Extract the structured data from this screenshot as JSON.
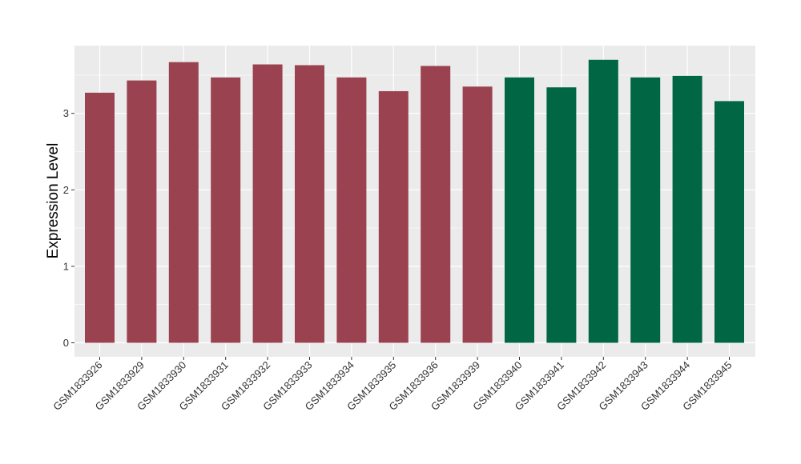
{
  "chart_data": {
    "type": "bar",
    "title": "",
    "xlabel": "",
    "ylabel": "Expression Level",
    "ylim": [
      0,
      3.9
    ],
    "yticks": [
      0,
      1,
      2,
      3
    ],
    "grid": true,
    "legend": "none",
    "categories": [
      "GSM1833926",
      "GSM1833929",
      "GSM1833930",
      "GSM1833931",
      "GSM1833932",
      "GSM1833933",
      "GSM1833934",
      "GSM1833935",
      "GSM1833936",
      "GSM1833939",
      "GSM1833940",
      "GSM1833941",
      "GSM1833942",
      "GSM1833943",
      "GSM1833944",
      "GSM1833945"
    ],
    "values": [
      3.27,
      3.43,
      3.67,
      3.47,
      3.64,
      3.63,
      3.47,
      3.29,
      3.62,
      3.35,
      3.47,
      3.34,
      3.7,
      3.47,
      3.49,
      3.16
    ],
    "groups": [
      0,
      0,
      0,
      0,
      0,
      0,
      0,
      0,
      0,
      0,
      1,
      1,
      1,
      1,
      1,
      1
    ],
    "group_colors": [
      "#9a4250",
      "#006644"
    ],
    "panel_background": "#ebebeb",
    "grid_color": "#ffffff"
  }
}
